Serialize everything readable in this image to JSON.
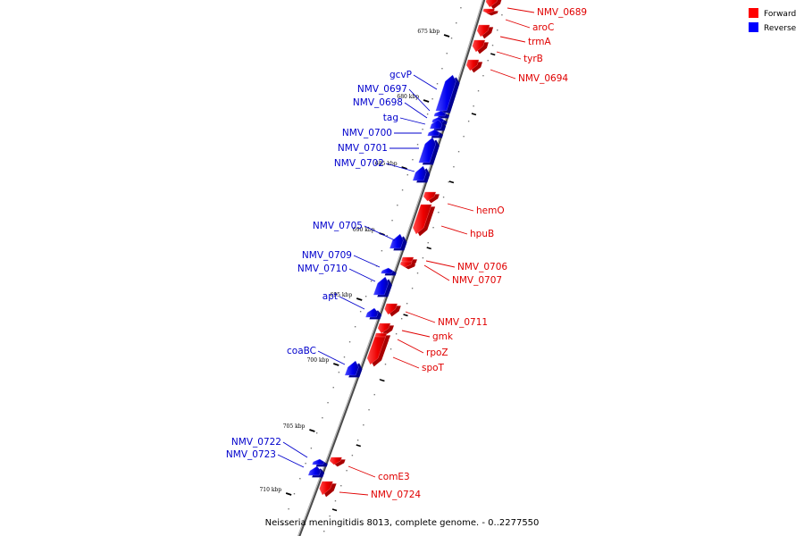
{
  "legend": {
    "items": [
      {
        "label": "Forward",
        "color": "#ff0000"
      },
      {
        "label": "Reverse",
        "color": "#0000ff"
      }
    ]
  },
  "caption": "Neisseria meningitidis 8013, complete genome. - 0..2277550",
  "ticks": [
    {
      "label": "675 kbp"
    },
    {
      "label": "680 kbp"
    },
    {
      "label": "685 kbp"
    },
    {
      "label": "690 kbp"
    },
    {
      "label": "695 kbp"
    },
    {
      "label": "700 kbp"
    },
    {
      "label": "705 kbp"
    },
    {
      "label": "710 kbp"
    }
  ],
  "genes": [
    {
      "name": "NMV_0689",
      "strand": "forward"
    },
    {
      "name": "aroC",
      "strand": "forward"
    },
    {
      "name": "trmA",
      "strand": "forward"
    },
    {
      "name": "tyrB",
      "strand": "forward"
    },
    {
      "name": "NMV_0694",
      "strand": "forward"
    },
    {
      "name": "gcvP",
      "strand": "reverse"
    },
    {
      "name": "NMV_0697",
      "strand": "reverse"
    },
    {
      "name": "NMV_0698",
      "strand": "reverse"
    },
    {
      "name": "tag",
      "strand": "reverse"
    },
    {
      "name": "NMV_0700",
      "strand": "reverse"
    },
    {
      "name": "NMV_0701",
      "strand": "reverse"
    },
    {
      "name": "NMV_0702",
      "strand": "reverse"
    },
    {
      "name": "hemO",
      "strand": "forward"
    },
    {
      "name": "hpuB",
      "strand": "forward"
    },
    {
      "name": "NMV_0705",
      "strand": "reverse"
    },
    {
      "name": "NMV_0706",
      "strand": "forward"
    },
    {
      "name": "NMV_0707",
      "strand": "forward"
    },
    {
      "name": "NMV_0709",
      "strand": "reverse"
    },
    {
      "name": "NMV_0710",
      "strand": "reverse"
    },
    {
      "name": "apt",
      "strand": "reverse"
    },
    {
      "name": "NMV_0711",
      "strand": "forward"
    },
    {
      "name": "gmk",
      "strand": "forward"
    },
    {
      "name": "rpoZ",
      "strand": "forward"
    },
    {
      "name": "spoT",
      "strand": "forward"
    },
    {
      "name": "coaBC",
      "strand": "reverse"
    },
    {
      "name": "NMV_0722",
      "strand": "reverse"
    },
    {
      "name": "NMV_0723",
      "strand": "reverse"
    },
    {
      "name": "comE3",
      "strand": "forward"
    },
    {
      "name": "NMV_0724",
      "strand": "forward"
    }
  ]
}
